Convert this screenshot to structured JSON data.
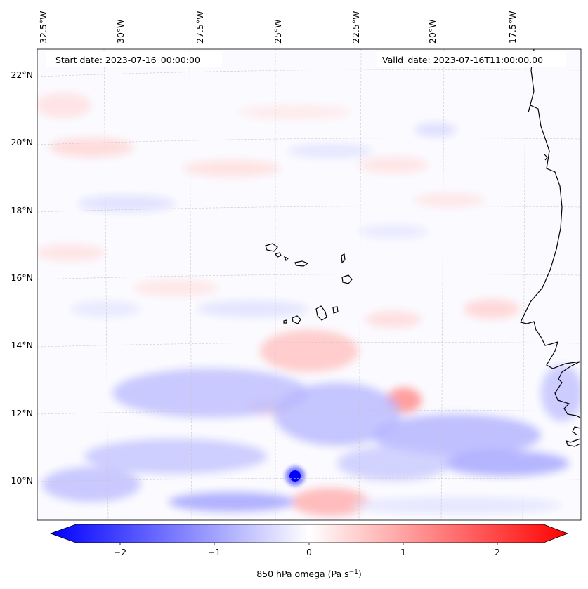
{
  "header": {
    "start_date": "Start date: 2023-07-16_00:00:00",
    "valid_date": "Valid_date: 2023-07-16T11:00:00.00"
  },
  "lon_ticks": [
    "32.5°W",
    "30°W",
    "27.5°W",
    "25°W",
    "22.5°W",
    "20°W",
    "17.5°W"
  ],
  "lat_ticks": [
    "22°N",
    "20°N",
    "18°N",
    "16°N",
    "14°N",
    "12°N",
    "10°N"
  ],
  "colorbar": {
    "tick_labels": [
      "−2",
      "−1",
      "0",
      "1",
      "2"
    ],
    "label": "850 hPa omega (Pa s",
    "label_sup": "−1",
    "label_close": ")",
    "min": -2.75,
    "max": 2.75,
    "colors": {
      "low": "#0000ff",
      "mid": "#ffffff",
      "high": "#ff0000"
    }
  },
  "chart_data": {
    "type": "heatmap",
    "variable": "850 hPa omega",
    "units": "Pa s^-1",
    "extent_lon": [
      -33.0,
      -15.5
    ],
    "extent_lat": [
      8.9,
      22.8
    ],
    "features": [
      {
        "name": "strong ascent spot",
        "lon": -24.0,
        "lat": 10.15,
        "value": -2.7
      },
      {
        "name": "ascent band",
        "lon_range": [
          -31.0,
          -16.0
        ],
        "lat_range": [
          9.5,
          13.2
        ],
        "value": -0.6
      },
      {
        "name": "descent patch",
        "lon": -20.8,
        "lat": 12.3,
        "value": 0.7
      },
      {
        "name": "descent patch",
        "lon": -23.0,
        "lat": 14.2,
        "value": 0.5
      },
      {
        "name": "descent patch",
        "lon": -23.0,
        "lat": 9.3,
        "value": 0.8
      }
    ]
  }
}
